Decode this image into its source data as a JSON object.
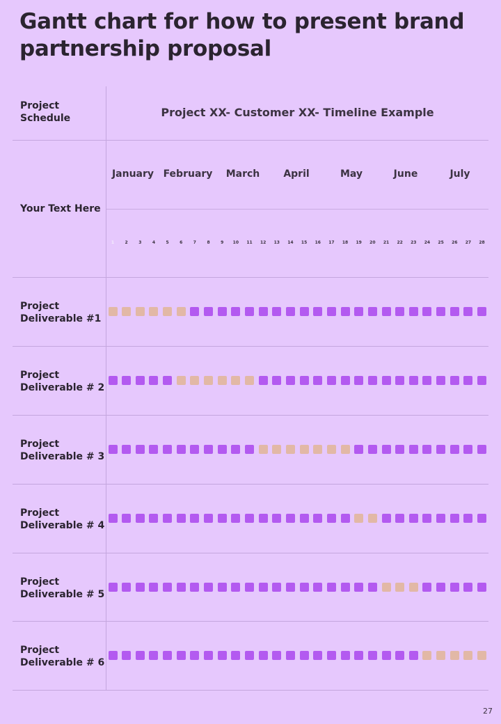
{
  "title": "Gantt chart for how to present brand partnership proposal",
  "page_number": "27",
  "table": {
    "schedule_label": "Project Schedule",
    "header_title": "Project XX- Customer XX- Timeline Example",
    "text_label": "Your Text Here"
  },
  "colors": {
    "background": "#e6c8fd",
    "base_cell": "#b35af0",
    "task_cell": "#e2b8a6",
    "gridline": "#c4a6de"
  },
  "chart_data": {
    "type": "table",
    "months": [
      "January",
      "February",
      "March",
      "April",
      "May",
      "June",
      "July"
    ],
    "days": [
      "1",
      "2",
      "3",
      "4",
      "5",
      "6",
      "7",
      "8",
      "9",
      "10",
      "11",
      "12",
      "13",
      "14",
      "15",
      "16",
      "17",
      "18",
      "19",
      "20",
      "21",
      "22",
      "23",
      "24",
      "25",
      "26",
      "27",
      "28"
    ],
    "deliverables": [
      {
        "name": "Project Deliverable #1",
        "start": 1,
        "end": 6
      },
      {
        "name": "Project Deliverable # 2",
        "start": 6,
        "end": 11
      },
      {
        "name": "Project Deliverable # 3",
        "start": 12,
        "end": 18
      },
      {
        "name": "Project Deliverable # 4",
        "start": 19,
        "end": 20
      },
      {
        "name": "Project Deliverable # 5",
        "start": 21,
        "end": 23
      },
      {
        "name": "Project Deliverable # 6",
        "start": 24,
        "end": 28
      }
    ]
  }
}
